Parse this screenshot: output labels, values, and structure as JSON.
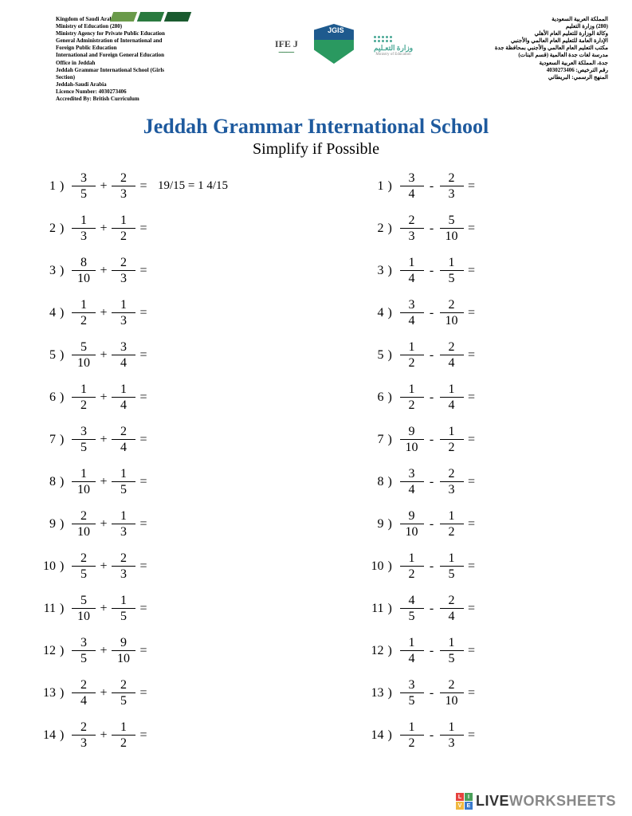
{
  "header": {
    "left_lines": [
      "Kingdom of Saudi Arabia",
      "Ministry of Education (280)",
      "Ministry Agency for Private Public Education",
      "General Administration of International and",
      "Foreign Public Education",
      "International and Foreign General Education",
      "Office in Jeddah",
      "Jeddah Grammar International School (Girls",
      "Section)",
      "Jeddah-Saudi Arabia",
      "Licence Number: 4030273406",
      "Accredited By: British Curriculum"
    ],
    "right_lines": [
      "المملكة العربية السعودية",
      "(280) وزارة التعليم",
      "وكالة الوزارة للتعليم العام الأهلي",
      "الإدارة العامة للتعليم العام العالمي والأجنبي",
      "مكتب التعليم العام العالمي والأجنبي بمحافظة جدة",
      "مدرسة لغات جدة العالمية (قسم البنات)",
      "جدة، المملكة العربية السعودية",
      "رقم الترخيص: 4030273406",
      "المنهج الرسمي: البريطاني"
    ],
    "ifej_label": "IFE  J",
    "jgis_label": "JGIS",
    "ministry_ar": "وزارة التعـليم",
    "ministry_en": "Ministry of Education",
    "stripe_colors": [
      "#6a9a4a",
      "#2a7a3f",
      "#1a5a2f"
    ]
  },
  "title": "Jeddah Grammar International School",
  "subtitle": "Simplify if Possible",
  "colors": {
    "title": "#1e5a9e",
    "text": "#000000",
    "background": "#ffffff"
  },
  "left_problems": [
    {
      "n": "1",
      "a": "3",
      "b": "5",
      "op": "+",
      "c": "2",
      "d": "3",
      "ans": "19/15 = 1 4/15"
    },
    {
      "n": "2",
      "a": "1",
      "b": "3",
      "op": "+",
      "c": "1",
      "d": "2",
      "ans": ""
    },
    {
      "n": "3",
      "a": "8",
      "b": "10",
      "op": "+",
      "c": "2",
      "d": "3",
      "ans": ""
    },
    {
      "n": "4",
      "a": "1",
      "b": "2",
      "op": "+",
      "c": "1",
      "d": "3",
      "ans": ""
    },
    {
      "n": "5",
      "a": "5",
      "b": "10",
      "op": "+",
      "c": "3",
      "d": "4",
      "ans": ""
    },
    {
      "n": "6",
      "a": "1",
      "b": "2",
      "op": "+",
      "c": "1",
      "d": "4",
      "ans": ""
    },
    {
      "n": "7",
      "a": "3",
      "b": "5",
      "op": "+",
      "c": "2",
      "d": "4",
      "ans": ""
    },
    {
      "n": "8",
      "a": "1",
      "b": "10",
      "op": "+",
      "c": "1",
      "d": "5",
      "ans": ""
    },
    {
      "n": "9",
      "a": "2",
      "b": "10",
      "op": "+",
      "c": "1",
      "d": "3",
      "ans": ""
    },
    {
      "n": "10",
      "a": "2",
      "b": "5",
      "op": "+",
      "c": "2",
      "d": "3",
      "ans": ""
    },
    {
      "n": "11",
      "a": "5",
      "b": "10",
      "op": "+",
      "c": "1",
      "d": "5",
      "ans": ""
    },
    {
      "n": "12",
      "a": "3",
      "b": "5",
      "op": "+",
      "c": "9",
      "d": "10",
      "ans": ""
    },
    {
      "n": "13",
      "a": "2",
      "b": "4",
      "op": "+",
      "c": "2",
      "d": "5",
      "ans": ""
    },
    {
      "n": "14",
      "a": "2",
      "b": "3",
      "op": "+",
      "c": "1",
      "d": "2",
      "ans": ""
    }
  ],
  "right_problems": [
    {
      "n": "1",
      "a": "3",
      "b": "4",
      "op": "-",
      "c": "2",
      "d": "3",
      "ans": ""
    },
    {
      "n": "2",
      "a": "2",
      "b": "3",
      "op": "-",
      "c": "5",
      "d": "10",
      "ans": ""
    },
    {
      "n": "3",
      "a": "1",
      "b": "4",
      "op": "-",
      "c": "1",
      "d": "5",
      "ans": ""
    },
    {
      "n": "4",
      "a": "3",
      "b": "4",
      "op": "-",
      "c": "2",
      "d": "10",
      "ans": ""
    },
    {
      "n": "5",
      "a": "1",
      "b": "2",
      "op": "-",
      "c": "2",
      "d": "4",
      "ans": ""
    },
    {
      "n": "6",
      "a": "1",
      "b": "2",
      "op": "-",
      "c": "1",
      "d": "4",
      "ans": ""
    },
    {
      "n": "7",
      "a": "9",
      "b": "10",
      "op": "-",
      "c": "1",
      "d": "2",
      "ans": ""
    },
    {
      "n": "8",
      "a": "3",
      "b": "4",
      "op": "-",
      "c": "2",
      "d": "3",
      "ans": ""
    },
    {
      "n": "9",
      "a": "9",
      "b": "10",
      "op": "-",
      "c": "1",
      "d": "2",
      "ans": ""
    },
    {
      "n": "10",
      "a": "1",
      "b": "2",
      "op": "-",
      "c": "1",
      "d": "5",
      "ans": ""
    },
    {
      "n": "11",
      "a": "4",
      "b": "5",
      "op": "-",
      "c": "2",
      "d": "4",
      "ans": ""
    },
    {
      "n": "12",
      "a": "1",
      "b": "4",
      "op": "-",
      "c": "1",
      "d": "5",
      "ans": ""
    },
    {
      "n": "13",
      "a": "3",
      "b": "5",
      "op": "-",
      "c": "2",
      "d": "10",
      "ans": ""
    },
    {
      "n": "14",
      "a": "1",
      "b": "2",
      "op": "-",
      "c": "1",
      "d": "3",
      "ans": ""
    }
  ],
  "footer": {
    "icon_colors": [
      "#e6433f",
      "#4aa05a",
      "#f0b840",
      "#3a7acc"
    ],
    "icon_letters": [
      "L",
      "I",
      "V",
      "E"
    ],
    "live": "LIVE",
    "work": "WORKSHEETS"
  }
}
